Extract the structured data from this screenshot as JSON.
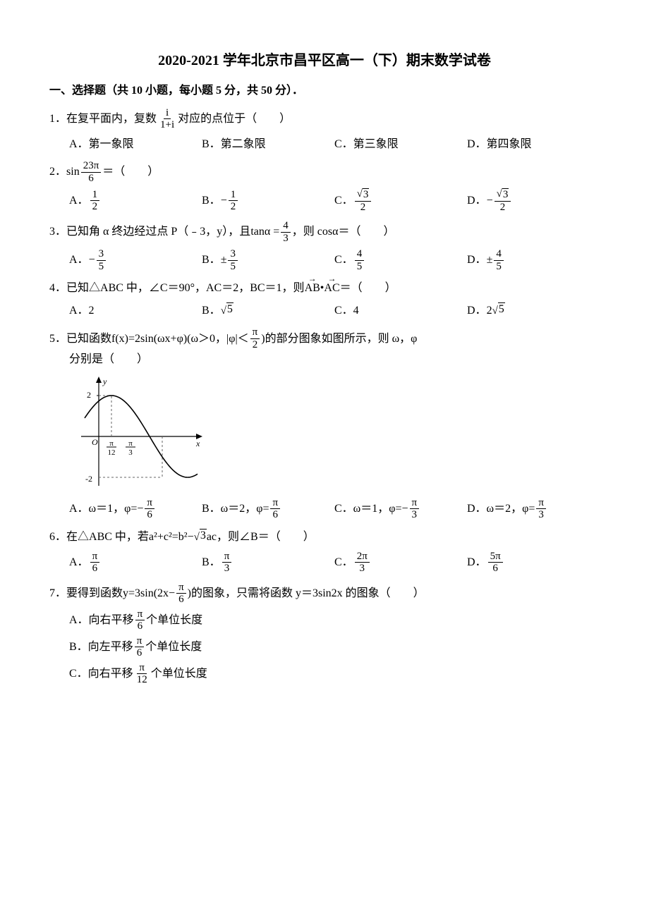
{
  "title": "2020-2021 学年北京市昌平区高一（下）期末数学试卷",
  "section1": "一、选择题（共 10 小题，每小题 5 分，共 50 分）．",
  "q1": {
    "num": "1．",
    "pre": "在复平面内，复数",
    "frac_num": "i",
    "frac_den": "1+i",
    "post": "对应的点位于（　　）",
    "A": "A．第一象限",
    "B": "B．第二象限",
    "C": "C．第三象限",
    "D": "D．第四象限"
  },
  "q2": {
    "num": "2．",
    "pre": "sin",
    "frac_num": "23π",
    "frac_den": "6",
    "post": "＝（　　）",
    "A_pre": "A．",
    "A_num": "1",
    "A_den": "2",
    "B_pre": "B．",
    "B_sign": "−",
    "B_num": "1",
    "B_den": "2",
    "C_pre": "C．",
    "C_rad": "3",
    "C_den": "2",
    "D_pre": "D．",
    "D_sign": "−",
    "D_rad": "3",
    "D_den": "2"
  },
  "q3": {
    "num": "3．",
    "pre": "已知角 α 终边经过点 P（﹣3，y），且",
    "tan": "tanα =",
    "f_num": "4",
    "f_den": "3",
    "post": "，则 cosα＝（　　）",
    "A_pre": "A．",
    "A_sign": "−",
    "A_num": "3",
    "A_den": "5",
    "B_pre": "B．",
    "B_sign": "±",
    "B_num": "3",
    "B_den": "5",
    "C_pre": "C．",
    "C_num": "4",
    "C_den": "5",
    "D_pre": "D．",
    "D_sign": "±",
    "D_num": "4",
    "D_den": "5"
  },
  "q4": {
    "num": "4．",
    "text_pre": "已知△ABC 中，∠C＝90°，AC＝2，BC＝1，则",
    "v1": "AB",
    "dot": " • ",
    "v2": "AC",
    "text_post": "＝（　　）",
    "A": "A．2",
    "B_pre": "B．",
    "B_rad": "5",
    "C": "C．4",
    "D_pre": "D．",
    "D_mul": "2",
    "D_rad": "5"
  },
  "q5": {
    "num": "5．",
    "pre": "已知函数f(x)=2sin(ωx+φ)(ω＞0，|φ|＜",
    "f_num": "π",
    "f_den": "2",
    "post": ")的部分图象如图所示，则 ω，φ",
    "line2": "分别是（　　）",
    "graph": {
      "width": 180,
      "height": 170,
      "ox": 30,
      "oy": 90,
      "y_top_label": "2",
      "y_bot_label": "-2",
      "x_tick1_num": "π",
      "x_tick1_den": "12",
      "x_tick2_num": "π",
      "x_tick2_den": "3",
      "axis_color": "#000",
      "curve_color": "#000",
      "dash_color": "#666",
      "y_label": "y",
      "x_label": "x",
      "o_label": "O"
    },
    "A_pre": "A．ω＝1，φ=",
    "A_s": "−",
    "A_n": "π",
    "A_d": "6",
    "B_pre": "B．ω＝2，φ=",
    "B_n": "π",
    "B_d": "6",
    "C_pre": "C．ω＝1，φ=",
    "C_s": "−",
    "C_n": "π",
    "C_d": "3",
    "D_pre": "D．ω＝2，φ=",
    "D_n": "π",
    "D_d": "3"
  },
  "q6": {
    "num": "6．",
    "pre": "在△ABC 中，若",
    "eq_l": "a",
    "eq_r": "²+c²=b²−",
    "rad": "3",
    "tail": "ac",
    "post": "，则∠B＝（　　）",
    "A_pre": "A．",
    "A_n": "π",
    "A_d": "6",
    "B_pre": "B．",
    "B_n": "π",
    "B_d": "3",
    "C_pre": "C．",
    "C_n": "2π",
    "C_d": "3",
    "D_pre": "D．",
    "D_n": "5π",
    "D_d": "6"
  },
  "q7": {
    "num": "7．",
    "pre": "要得到函数y=3sin(2x−",
    "f_n": "π",
    "f_d": "6",
    "mid": ")的图象，只需将函数 y＝3sin2x 的图象（　　）",
    "A_pre": "A．向右平移",
    "A_n": "π",
    "A_d": "6",
    "A_post": "个单位长度",
    "B_pre": "B．向左平移",
    "B_n": "π",
    "B_d": "6",
    "B_post": "个单位长度",
    "C_pre": "C．向右平移",
    "C_n": "π",
    "C_d": "12",
    "C_post": "个单位长度"
  }
}
